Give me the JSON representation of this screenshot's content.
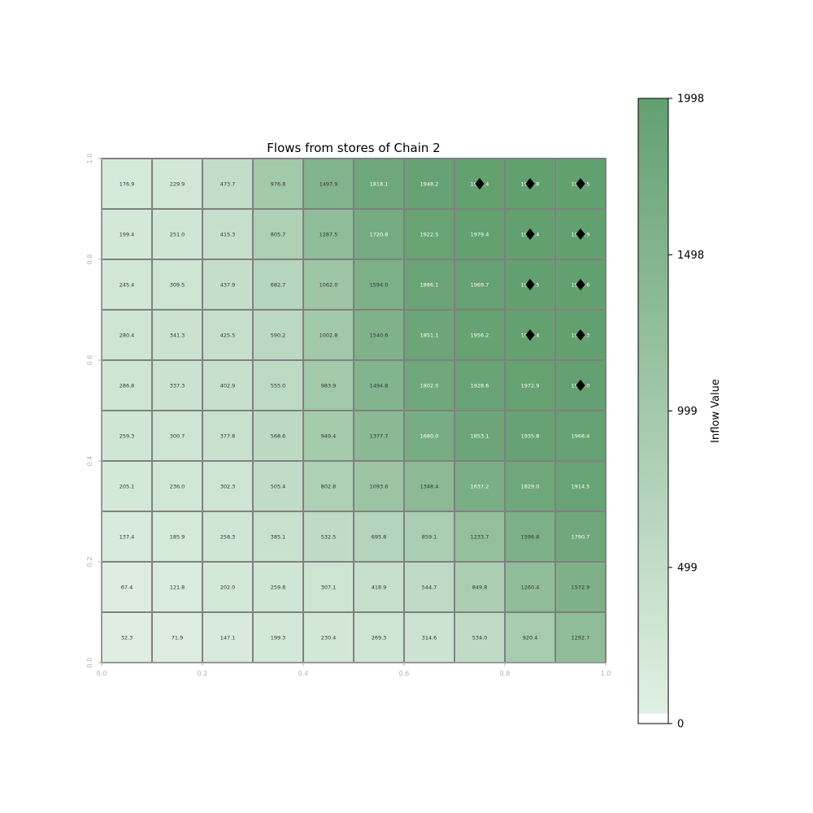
{
  "chart_data": {
    "type": "heatmap",
    "title": "Flows from stores of Chain 2",
    "x_ticks": [
      "0.0",
      "0.2",
      "0.4",
      "0.6",
      "0.8",
      "1.0"
    ],
    "y_ticks": [
      "0.0",
      "0.2",
      "0.4",
      "0.6",
      "0.8",
      "1.0"
    ],
    "xlim": [
      0,
      1
    ],
    "ylim": [
      0,
      1
    ],
    "rows_top_to_bottom": [
      [
        176.9,
        229.9,
        473.7,
        976.8,
        1497.9,
        1818.1,
        1948.2,
        1985.4,
        1994.8,
        1997.5
      ],
      [
        199.4,
        251.0,
        415.3,
        805.7,
        1287.5,
        1720.8,
        1922.5,
        1979.4,
        1993.4,
        1996.9
      ],
      [
        245.4,
        309.5,
        437.9,
        682.7,
        1062.0,
        1594.0,
        1886.1,
        1969.7,
        1990.5,
        1995.6
      ],
      [
        280.4,
        341.3,
        425.5,
        590.2,
        1002.8,
        1540.6,
        1851.1,
        1956.2,
        1985.4,
        1993.3
      ],
      [
        286.8,
        337.3,
        402.9,
        555.0,
        983.9,
        1494.8,
        1802.0,
        1928.6,
        1972.9,
        1987.0
      ],
      [
        259.3,
        300.7,
        377.8,
        568.6,
        949.4,
        1377.7,
        1680.0,
        1853.1,
        1935.8,
        1968.4
      ],
      [
        205.1,
        236.0,
        302.3,
        505.4,
        802.8,
        1093.6,
        1348.4,
        1637.2,
        1829.0,
        1914.5
      ],
      [
        137.4,
        185.9,
        258.3,
        385.1,
        532.5,
        695.8,
        859.1,
        1233.7,
        1596.8,
        1790.7
      ],
      [
        67.4,
        121.8,
        202.0,
        259.8,
        307.1,
        418.9,
        544.7,
        849.8,
        1260.4,
        1572.9
      ],
      [
        32.3,
        71.9,
        147.1,
        199.3,
        230.4,
        269.3,
        314.6,
        534.0,
        920.4,
        1292.7
      ]
    ],
    "markers": [
      {
        "row": 0,
        "col": 7
      },
      {
        "row": 0,
        "col": 8
      },
      {
        "row": 0,
        "col": 9
      },
      {
        "row": 1,
        "col": 8
      },
      {
        "row": 1,
        "col": 9
      },
      {
        "row": 2,
        "col": 8
      },
      {
        "row": 2,
        "col": 9
      },
      {
        "row": 3,
        "col": 8
      },
      {
        "row": 3,
        "col": 9
      },
      {
        "row": 4,
        "col": 9
      }
    ],
    "marker_shape": "diamond",
    "colorbar": {
      "label": "Inflow Value",
      "min": 0,
      "max": 1998,
      "ticks": [
        0,
        499,
        999,
        1498,
        1998
      ],
      "tick_labels": [
        "0",
        "499",
        "999",
        "1498",
        "1998"
      ]
    },
    "colors": {
      "low": "#e0f0e3",
      "high": "#63a070",
      "grid": "#808080",
      "marker": "#000000",
      "text_dark": "#333333",
      "text_light": "#ffffff"
    }
  }
}
